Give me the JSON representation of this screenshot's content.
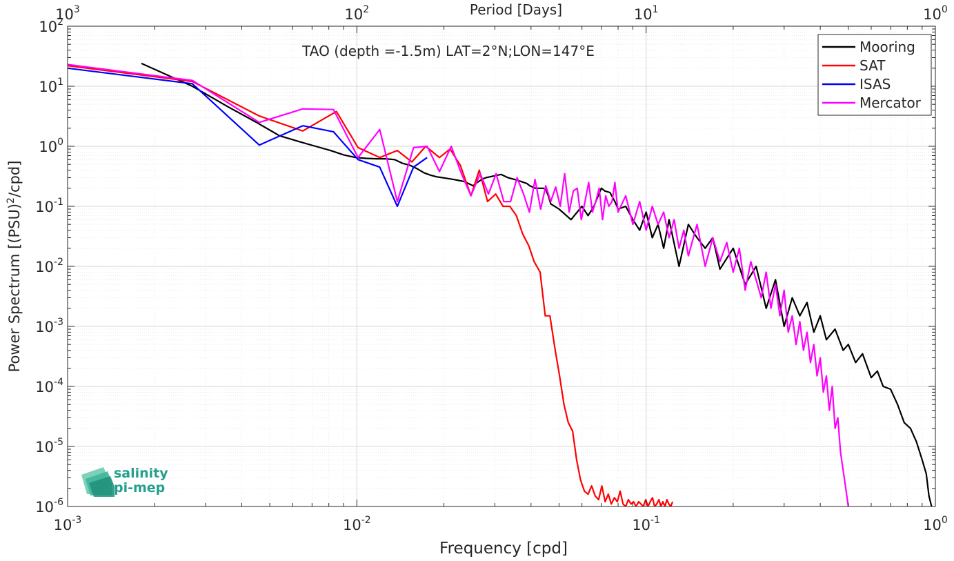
{
  "chart_data": {
    "type": "line",
    "title": "TAO (depth =-1.5m) LAT=2°N;LON=147°E",
    "xlabel": "Frequency [cpd]",
    "ylabel": "Power Spectrum [(PSU)^2/cpd]",
    "top_xlabel": "Period [Days]",
    "xscale": "log",
    "yscale": "log",
    "xlim": [
      0.001,
      1
    ],
    "ylim": [
      1e-06,
      100
    ],
    "grid": true,
    "legend_position": "top-right",
    "x_ticks": [
      {
        "value": 0.001,
        "base": "10",
        "exp": "-3"
      },
      {
        "value": 0.01,
        "base": "10",
        "exp": "-2"
      },
      {
        "value": 0.1,
        "base": "10",
        "exp": "-1"
      },
      {
        "value": 1,
        "base": "10",
        "exp": "0"
      }
    ],
    "top_ticks": [
      {
        "value": 0.001,
        "base": "10",
        "exp": "3"
      },
      {
        "value": 0.01,
        "base": "10",
        "exp": "2"
      },
      {
        "value": 0.1,
        "base": "10",
        "exp": "1"
      },
      {
        "value": 1,
        "base": "10",
        "exp": "0"
      }
    ],
    "y_ticks": [
      {
        "value": 100,
        "base": "10",
        "exp": "2"
      },
      {
        "value": 10,
        "base": "10",
        "exp": "1"
      },
      {
        "value": 1,
        "base": "10",
        "exp": "0"
      },
      {
        "value": 0.1,
        "base": "10",
        "exp": "-1"
      },
      {
        "value": 0.01,
        "base": "10",
        "exp": "-2"
      },
      {
        "value": 0.001,
        "base": "10",
        "exp": "-3"
      },
      {
        "value": 0.0001,
        "base": "10",
        "exp": "-4"
      },
      {
        "value": 1e-05,
        "base": "10",
        "exp": "-5"
      },
      {
        "value": 1e-06,
        "base": "10",
        "exp": "-6"
      }
    ],
    "series": [
      {
        "name": "Mooring",
        "color": "#000000",
        "x": [
          0.0018,
          0.0027,
          0.0036,
          0.0045,
          0.0054,
          0.0063,
          0.0072,
          0.0081,
          0.009,
          0.0099,
          0.0108,
          0.0117,
          0.0126,
          0.0135,
          0.0144,
          0.0153,
          0.0162,
          0.0171,
          0.018,
          0.0189,
          0.0198,
          0.0207,
          0.0216,
          0.0225,
          0.0234,
          0.0243,
          0.0252,
          0.0261,
          0.027,
          0.0279,
          0.0288,
          0.0297,
          0.0306,
          0.0315,
          0.0324,
          0.0333,
          0.0342,
          0.0351,
          0.036,
          0.0369,
          0.0378,
          0.0387,
          0.0396,
          0.0405,
          0.0414,
          0.0423,
          0.0432,
          0.0441,
          0.045,
          0.0459,
          0.0468,
          0.05,
          0.055,
          0.06,
          0.063,
          0.066,
          0.07,
          0.072,
          0.075,
          0.078,
          0.08,
          0.085,
          0.09,
          0.095,
          0.1,
          0.105,
          0.11,
          0.115,
          0.12,
          0.13,
          0.14,
          0.15,
          0.16,
          0.17,
          0.18,
          0.2,
          0.22,
          0.24,
          0.26,
          0.28,
          0.3,
          0.32,
          0.34,
          0.36,
          0.38,
          0.4,
          0.42,
          0.45,
          0.48,
          0.5,
          0.53,
          0.56,
          0.6,
          0.63,
          0.66,
          0.7,
          0.74,
          0.78,
          0.82,
          0.86,
          0.9,
          0.93,
          0.95,
          0.97
        ],
        "y": [
          24,
          10,
          4.5,
          2.5,
          1.5,
          1.2,
          1.0,
          0.85,
          0.72,
          0.65,
          0.63,
          0.62,
          0.62,
          0.6,
          0.52,
          0.48,
          0.42,
          0.36,
          0.33,
          0.31,
          0.3,
          0.29,
          0.28,
          0.27,
          0.26,
          0.24,
          0.22,
          0.25,
          0.28,
          0.3,
          0.31,
          0.32,
          0.33,
          0.34,
          0.32,
          0.3,
          0.29,
          0.28,
          0.27,
          0.26,
          0.25,
          0.24,
          0.22,
          0.21,
          0.2,
          0.2,
          0.2,
          0.2,
          0.19,
          0.15,
          0.11,
          0.09,
          0.06,
          0.1,
          0.07,
          0.1,
          0.2,
          0.18,
          0.17,
          0.12,
          0.09,
          0.1,
          0.06,
          0.04,
          0.08,
          0.03,
          0.05,
          0.02,
          0.06,
          0.01,
          0.05,
          0.03,
          0.02,
          0.03,
          0.009,
          0.02,
          0.005,
          0.01,
          0.002,
          0.006,
          0.001,
          0.003,
          0.0015,
          0.0025,
          0.0008,
          0.0015,
          0.0006,
          0.0009,
          0.0004,
          0.0005,
          0.00025,
          0.00035,
          0.00014,
          0.00018,
          0.0001,
          9e-05,
          5e-05,
          2.5e-05,
          2e-05,
          1.2e-05,
          6e-06,
          3.5e-06,
          1.5e-06,
          1e-06
        ]
      },
      {
        "name": "SAT",
        "color": "#ff0000",
        "x": [
          0.001,
          0.0027,
          0.0046,
          0.0065,
          0.0085,
          0.0101,
          0.012,
          0.0138,
          0.0155,
          0.0173,
          0.0193,
          0.021,
          0.0228,
          0.0248,
          0.0265,
          0.0283,
          0.0302,
          0.032,
          0.0338,
          0.0356,
          0.0374,
          0.0393,
          0.041,
          0.043,
          0.0448,
          0.0465,
          0.0485,
          0.0502,
          0.052,
          0.0538,
          0.0557,
          0.0575,
          0.0593,
          0.0612,
          0.063,
          0.0648,
          0.0667,
          0.0685,
          0.0703,
          0.0722,
          0.074,
          0.0758,
          0.0777,
          0.0795,
          0.0813,
          0.0832,
          0.085,
          0.0868,
          0.0887,
          0.0905,
          0.0923,
          0.0942,
          0.096,
          0.0978,
          0.0997,
          0.1015,
          0.1033,
          0.1052,
          0.107,
          0.1088,
          0.1107,
          0.1125,
          0.1143,
          0.1162,
          0.118,
          0.1198,
          0.1217,
          0.1235
        ],
        "y": [
          22,
          12,
          3.2,
          1.8,
          3.8,
          0.95,
          0.65,
          0.85,
          0.55,
          1.0,
          0.65,
          0.9,
          0.48,
          0.15,
          0.4,
          0.12,
          0.16,
          0.1,
          0.1,
          0.07,
          0.035,
          0.022,
          0.012,
          0.008,
          0.0015,
          0.0015,
          0.0004,
          0.00015,
          5e-05,
          2.5e-05,
          1.8e-05,
          6e-06,
          2.8e-06,
          1.8e-06,
          1.6e-06,
          2.2e-06,
          1.5e-06,
          1.3e-06,
          2.2e-06,
          1.2e-06,
          1.6e-06,
          1.1e-06,
          1.4e-06,
          1.2e-06,
          1.8e-06,
          1.1e-06,
          1e-06,
          1.3e-06,
          1.1e-06,
          1.2e-06,
          1e-06,
          1.2e-06,
          1.1e-06,
          1e-06,
          1.3e-06,
          1e-06,
          1.2e-06,
          1.4e-06,
          1e-06,
          1.1e-06,
          1.3e-06,
          1e-06,
          1.2e-06,
          1e-06,
          1.3e-06,
          1.1e-06,
          1e-06,
          1.2e-06
        ]
      },
      {
        "name": "ISAS",
        "color": "#0000ff",
        "x": [
          0.001,
          0.0027,
          0.0046,
          0.0065,
          0.0083,
          0.0101,
          0.012,
          0.0138,
          0.0157,
          0.0175
        ],
        "y": [
          20,
          11,
          1.05,
          2.2,
          1.75,
          0.6,
          0.45,
          0.1,
          0.45,
          0.65
        ]
      },
      {
        "name": "Mercator",
        "color": "#ff00ff",
        "x": [
          0.001,
          0.0027,
          0.0046,
          0.0065,
          0.0083,
          0.0101,
          0.012,
          0.0138,
          0.0157,
          0.0175,
          0.0193,
          0.0212,
          0.023,
          0.0248,
          0.0267,
          0.0285,
          0.0303,
          0.0322,
          0.034,
          0.0358,
          0.0377,
          0.0395,
          0.0413,
          0.0432,
          0.045,
          0.0468,
          0.0487,
          0.0505,
          0.0523,
          0.0542,
          0.056,
          0.0578,
          0.0597,
          0.0615,
          0.0633,
          0.0652,
          0.067,
          0.0688,
          0.0707,
          0.0725,
          0.0743,
          0.0762,
          0.078,
          0.08,
          0.085,
          0.09,
          0.095,
          0.1,
          0.105,
          0.11,
          0.115,
          0.12,
          0.125,
          0.13,
          0.135,
          0.14,
          0.15,
          0.16,
          0.17,
          0.18,
          0.19,
          0.2,
          0.21,
          0.22,
          0.23,
          0.24,
          0.25,
          0.26,
          0.27,
          0.28,
          0.29,
          0.3,
          0.31,
          0.32,
          0.33,
          0.34,
          0.35,
          0.36,
          0.37,
          0.38,
          0.39,
          0.4,
          0.41,
          0.42,
          0.43,
          0.44,
          0.45,
          0.46,
          0.47,
          0.48,
          0.49,
          0.5
        ],
        "y": [
          23,
          12.5,
          2.5,
          4.2,
          4.1,
          0.65,
          1.9,
          0.12,
          0.95,
          1.0,
          0.38,
          1.0,
          0.35,
          0.15,
          0.35,
          0.16,
          0.35,
          0.12,
          0.12,
          0.3,
          0.16,
          0.08,
          0.28,
          0.09,
          0.22,
          0.12,
          0.21,
          0.1,
          0.35,
          0.08,
          0.18,
          0.2,
          0.06,
          0.12,
          0.25,
          0.08,
          0.12,
          0.2,
          0.06,
          0.15,
          0.1,
          0.12,
          0.25,
          0.08,
          0.15,
          0.05,
          0.12,
          0.04,
          0.1,
          0.05,
          0.08,
          0.03,
          0.06,
          0.02,
          0.04,
          0.015,
          0.05,
          0.01,
          0.03,
          0.012,
          0.025,
          0.008,
          0.02,
          0.004,
          0.012,
          0.006,
          0.003,
          0.008,
          0.002,
          0.005,
          0.0015,
          0.004,
          0.0008,
          0.0015,
          0.0005,
          0.0012,
          0.0004,
          0.0008,
          0.00025,
          0.0005,
          0.00015,
          0.0003,
          8e-05,
          0.00015,
          4e-05,
          0.0001,
          2e-05,
          3e-05,
          8e-06,
          4e-06,
          2e-06,
          1e-06
        ]
      }
    ]
  },
  "logo": {
    "line1": "salinity",
    "line2": "pi-mep",
    "color": "#23a08c"
  }
}
